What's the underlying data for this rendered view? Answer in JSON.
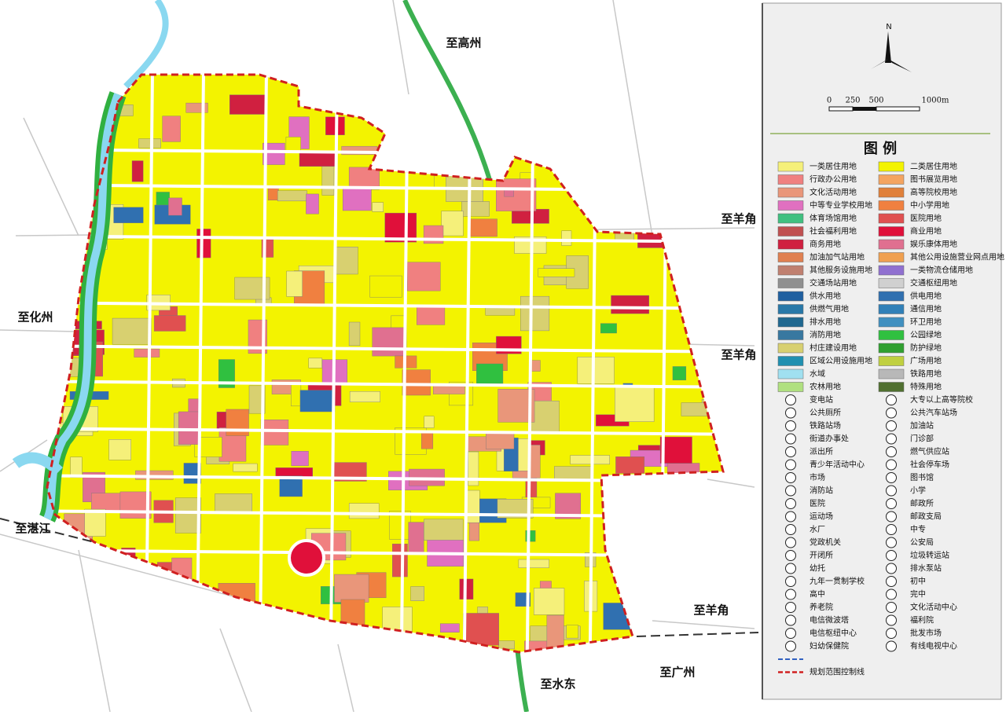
{
  "map": {
    "labels": [
      "至高州",
      "至羊角",
      "至化州",
      "至羊角",
      "至湛江",
      "至羊角",
      "至广州",
      "至水东"
    ]
  },
  "compass": {
    "north": "N",
    "scale": [
      "0",
      "250",
      "500",
      "1000m"
    ]
  },
  "legend": {
    "title": "图 例",
    "land_use": [
      {
        "name": "一类居住用地",
        "color": "#f5f07a"
      },
      {
        "name": "二类居住用地",
        "color": "#f3f300"
      },
      {
        "name": "行政办公用地",
        "color": "#f08080"
      },
      {
        "name": "图书展览用地",
        "color": "#f4a460"
      },
      {
        "name": "文化活动用地",
        "color": "#e9967a"
      },
      {
        "name": "高等院校用地",
        "color": "#e0803a"
      },
      {
        "name": "中等专业学校用地",
        "color": "#e070c0"
      },
      {
        "name": "中小学用地",
        "color": "#f08040"
      },
      {
        "name": "体育场馆用地",
        "color": "#40c080"
      },
      {
        "name": "医院用地",
        "color": "#e05050"
      },
      {
        "name": "社会福利用地",
        "color": "#c05050"
      },
      {
        "name": "商业用地",
        "color": "#e0103a"
      },
      {
        "name": "商务用地",
        "color": "#d02040"
      },
      {
        "name": "娱乐康体用地",
        "color": "#e07090"
      },
      {
        "name": "加油加气站用地",
        "color": "#e08050"
      },
      {
        "name": "其他公用设施营业网点用地",
        "color": "#f0a050"
      },
      {
        "name": "其他服务设施用地",
        "color": "#c08070"
      },
      {
        "name": "一类物流仓储用地",
        "color": "#9070d0"
      },
      {
        "name": "交通场站用地",
        "color": "#909090"
      },
      {
        "name": "交通枢纽用地",
        "color": "#d0d0d0"
      },
      {
        "name": "供水用地",
        "color": "#2060a0"
      },
      {
        "name": "供电用地",
        "color": "#3070b0"
      },
      {
        "name": "供燃气用地",
        "color": "#2878a8"
      },
      {
        "name": "通信用地",
        "color": "#3080b8"
      },
      {
        "name": "排水用地",
        "color": "#206890"
      },
      {
        "name": "环卫用地",
        "color": "#4090c0"
      },
      {
        "name": "消防用地",
        "color": "#3878a0"
      },
      {
        "name": "公园绿地",
        "color": "#30c040"
      },
      {
        "name": "村庄建设用地",
        "color": "#d8d070"
      },
      {
        "name": "防护绿地",
        "color": "#30a030"
      },
      {
        "name": "区域公用设施用地",
        "color": "#2090b0"
      },
      {
        "name": "广场用地",
        "color": "#c0d040"
      },
      {
        "name": "水域",
        "color": "#a0e0f0"
      },
      {
        "name": "铁路用地",
        "color": "#b8b8b8"
      },
      {
        "name": "农林用地",
        "color": "#b0e080"
      },
      {
        "name": "特殊用地",
        "color": "#507030"
      }
    ],
    "facilities": [
      "变电站",
      "大专以上高等院校",
      "公共厕所",
      "公共汽车站场",
      "铁路站场",
      "加油站",
      "街道办事处",
      "门诊部",
      "派出所",
      "燃气供应站",
      "青少年活动中心",
      "社会停车场",
      "市场",
      "图书馆",
      "消防站",
      "小学",
      "医院",
      "邮政所",
      "运动场",
      "邮政支局",
      "水厂",
      "中专",
      "党政机关",
      "公安局",
      "开闭所",
      "垃圾转运站",
      "幼托",
      "排水泵站",
      "九年一贯制学校",
      "初中",
      "高中",
      "完中",
      "养老院",
      "文化活动中心",
      "电信微波塔",
      "福利院",
      "电信枢纽中心",
      "批发市场",
      "妇幼保健院",
      "有线电视中心"
    ],
    "boundary": "规划范围控制线"
  }
}
